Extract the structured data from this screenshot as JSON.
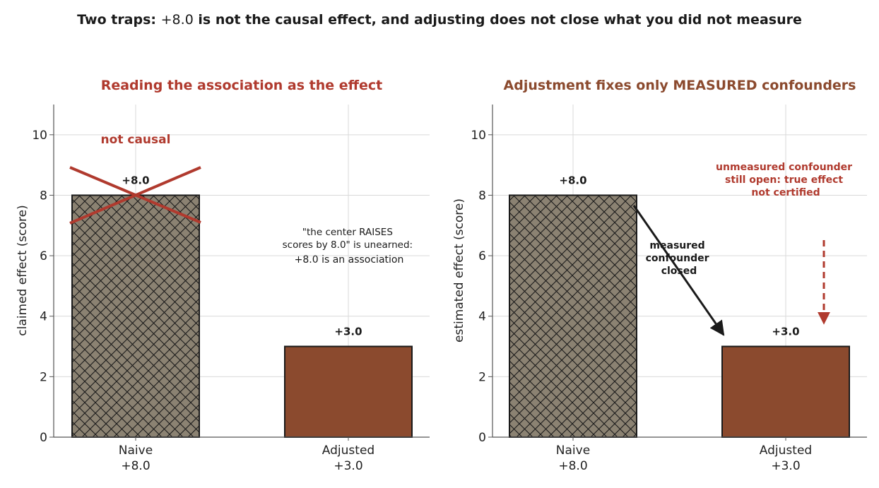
{
  "suptitle": {
    "part1": "Two traps: ",
    "value": "+8.0",
    "part2": " is not the causal effect, and adjusting does not close what you did not measure"
  },
  "colors": {
    "naive_fill": "#8b8272",
    "adjusted_fill": "#8b4a2e",
    "accent_red": "#b03a2e",
    "title_brown": "#8b4a2e",
    "grid": "#d9d9d9",
    "edge": "#1a1a1a"
  },
  "chart_data": [
    {
      "type": "bar",
      "title": "Reading the association as the effect",
      "categories": [
        "Naive",
        "Adjusted"
      ],
      "tick_labels": [
        [
          "Naive",
          "+8.0"
        ],
        [
          "Adjusted",
          "+3.0"
        ]
      ],
      "values": [
        8.0,
        3.0
      ],
      "bar_labels": [
        "+8.0",
        "+3.0"
      ],
      "ylabel": "claimed effect (score)",
      "ylim": [
        0,
        11
      ],
      "yticks": [
        "0",
        "2",
        "4",
        "6",
        "8",
        "10"
      ],
      "grid": true,
      "annotations": {
        "cross_label": "not causal",
        "note_lines": [
          "\"the center RAISES",
          "scores by 8.0\" is unearned:",
          "+8.0 is an association"
        ]
      }
    },
    {
      "type": "bar",
      "title": "Adjustment fixes only MEASURED confounders",
      "categories": [
        "Naive",
        "Adjusted"
      ],
      "tick_labels": [
        [
          "Naive",
          "+8.0"
        ],
        [
          "Adjusted",
          "+3.0"
        ]
      ],
      "values": [
        8.0,
        3.0
      ],
      "bar_labels": [
        "+8.0",
        "+3.0"
      ],
      "ylabel": "estimated effect (score)",
      "ylim": [
        0,
        11
      ],
      "yticks": [
        "0",
        "2",
        "4",
        "6",
        "8",
        "10"
      ],
      "grid": true,
      "annotations": {
        "arrow_label_lines": [
          "measured",
          "confounder",
          "closed"
        ],
        "warning_lines": [
          "unmeasured confounder",
          "still open: true effect",
          "not certified"
        ]
      }
    }
  ]
}
